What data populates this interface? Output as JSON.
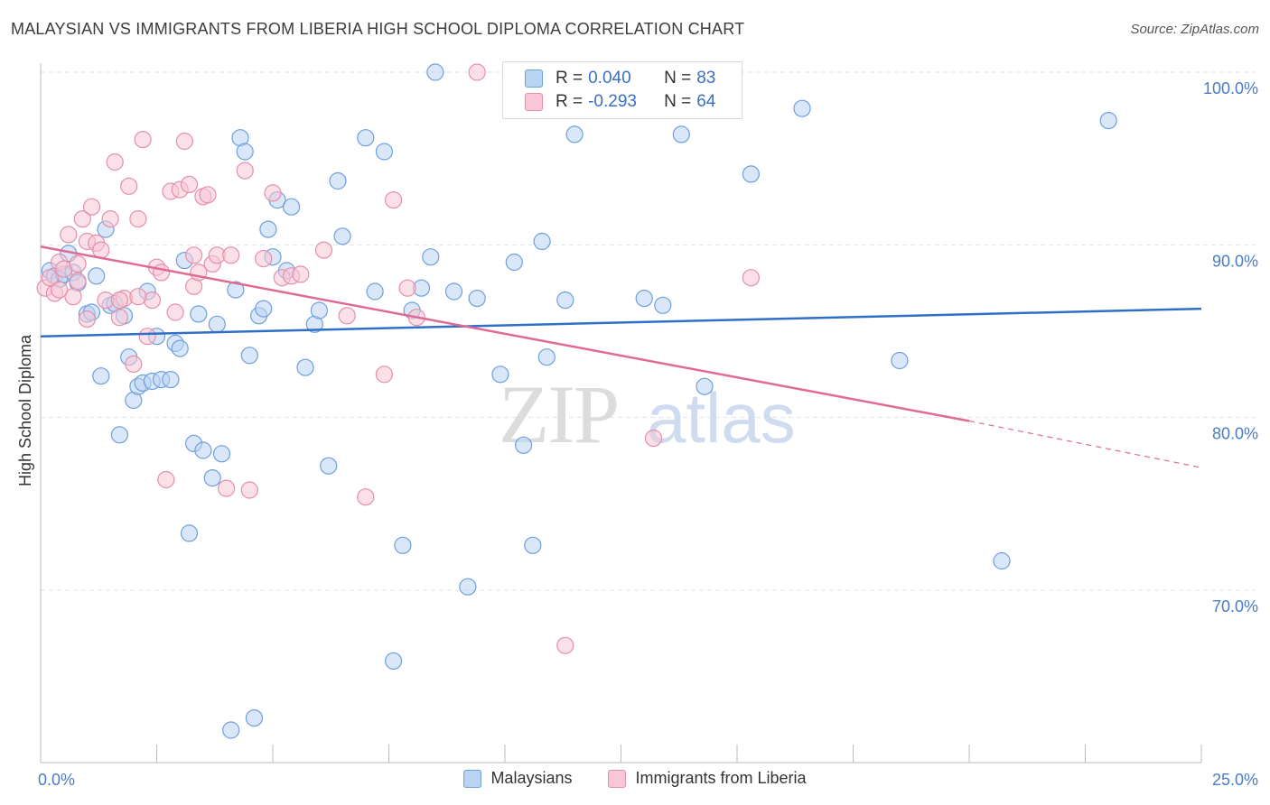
{
  "title": "MALAYSIAN VS IMMIGRANTS FROM LIBERIA HIGH SCHOOL DIPLOMA CORRELATION CHART",
  "source": "Source: ZipAtlas.com",
  "watermark": {
    "zip": "ZIP",
    "atlas": "atlas"
  },
  "colors": {
    "blue_fill": "#b9d3f3",
    "blue_stroke": "#6f9fdd",
    "blue_line": "#2f6fc8",
    "pink_fill": "#f8c6d6",
    "pink_stroke": "#e58fab",
    "pink_line": "#e06a94",
    "axis_text": "#4a7cc7",
    "grid": "#e2e2e2"
  },
  "legend": {
    "rows": [
      {
        "r_label": "R =",
        "r_value": "0.040",
        "n_label": "N =",
        "n_value": "83"
      },
      {
        "r_label": "R =",
        "r_value": "-0.293",
        "n_label": "N =",
        "n_value": "64"
      }
    ]
  },
  "bottom_legend": [
    "Malaysians",
    "Immigrants from Liberia"
  ],
  "chart_data": {
    "type": "scatter",
    "xlabel": "",
    "ylabel": "High School Diploma",
    "xlim": [
      0,
      25
    ],
    "ylim": [
      60.5,
      102
    ],
    "x_tick_labels": [
      "0.0%",
      "25.0%"
    ],
    "y_ticks": [
      70,
      80,
      90,
      100
    ],
    "y_tick_labels": [
      "70.0%",
      "80.0%",
      "90.0%",
      "100.0%"
    ],
    "series": [
      {
        "name": "Malaysians",
        "trend": {
          "x": [
            0,
            25
          ],
          "y": [
            84.7,
            86.3
          ],
          "dashed_from": null
        },
        "points": [
          [
            0.2,
            88.5
          ],
          [
            0.3,
            88.2
          ],
          [
            0.4,
            88.0
          ],
          [
            0.5,
            88.3
          ],
          [
            0.6,
            89.5
          ],
          [
            0.7,
            88.4
          ],
          [
            0.8,
            87.8
          ],
          [
            1.0,
            86.0
          ],
          [
            1.1,
            86.1
          ],
          [
            1.2,
            88.2
          ],
          [
            1.3,
            82.4
          ],
          [
            1.4,
            90.9
          ],
          [
            1.5,
            86.5
          ],
          [
            1.6,
            86.6
          ],
          [
            1.7,
            79.0
          ],
          [
            1.8,
            85.9
          ],
          [
            1.9,
            83.5
          ],
          [
            2.0,
            81.0
          ],
          [
            2.1,
            81.8
          ],
          [
            2.2,
            82.0
          ],
          [
            2.3,
            87.3
          ],
          [
            2.4,
            82.1
          ],
          [
            2.5,
            84.7
          ],
          [
            2.6,
            82.2
          ],
          [
            2.8,
            82.2
          ],
          [
            2.9,
            84.3
          ],
          [
            3.0,
            84.0
          ],
          [
            3.1,
            89.1
          ],
          [
            3.2,
            73.3
          ],
          [
            3.3,
            78.5
          ],
          [
            3.4,
            86.0
          ],
          [
            3.5,
            78.1
          ],
          [
            3.7,
            76.5
          ],
          [
            3.8,
            85.4
          ],
          [
            3.9,
            77.9
          ],
          [
            4.1,
            61.9
          ],
          [
            4.2,
            87.4
          ],
          [
            4.3,
            96.2
          ],
          [
            4.4,
            95.4
          ],
          [
            4.5,
            83.6
          ],
          [
            4.6,
            62.6
          ],
          [
            4.7,
            85.9
          ],
          [
            4.8,
            86.3
          ],
          [
            4.9,
            90.9
          ],
          [
            5.0,
            89.3
          ],
          [
            5.1,
            92.6
          ],
          [
            5.3,
            88.5
          ],
          [
            5.4,
            92.2
          ],
          [
            5.7,
            82.9
          ],
          [
            5.9,
            85.4
          ],
          [
            6.0,
            86.2
          ],
          [
            6.2,
            77.2
          ],
          [
            6.4,
            93.7
          ],
          [
            6.5,
            90.5
          ],
          [
            7.0,
            96.2
          ],
          [
            7.2,
            87.3
          ],
          [
            7.4,
            95.4
          ],
          [
            7.6,
            65.9
          ],
          [
            7.8,
            72.6
          ],
          [
            8.0,
            86.2
          ],
          [
            8.2,
            87.5
          ],
          [
            8.4,
            89.3
          ],
          [
            8.5,
            100.0
          ],
          [
            8.9,
            87.3
          ],
          [
            9.2,
            70.2
          ],
          [
            9.4,
            86.9
          ],
          [
            9.9,
            82.5
          ],
          [
            10.2,
            89.0
          ],
          [
            10.4,
            78.4
          ],
          [
            10.6,
            72.6
          ],
          [
            10.8,
            90.2
          ],
          [
            10.9,
            83.5
          ],
          [
            11.3,
            86.8
          ],
          [
            11.5,
            96.4
          ],
          [
            13.0,
            86.9
          ],
          [
            13.4,
            86.5
          ],
          [
            13.8,
            96.4
          ],
          [
            14.3,
            81.8
          ],
          [
            15.3,
            94.1
          ],
          [
            16.4,
            97.9
          ],
          [
            18.5,
            83.3
          ],
          [
            20.7,
            71.7
          ],
          [
            23.0,
            97.2
          ]
        ]
      },
      {
        "name": "Immigrants from Liberia",
        "trend": {
          "x": [
            0,
            20,
            25
          ],
          "y": [
            89.9,
            79.8,
            77.1
          ],
          "dashed_from": 20
        },
        "points": [
          [
            0.1,
            87.5
          ],
          [
            0.2,
            88.1
          ],
          [
            0.3,
            87.2
          ],
          [
            0.4,
            89.0
          ],
          [
            0.5,
            88.6
          ],
          [
            0.6,
            90.6
          ],
          [
            0.7,
            87.0
          ],
          [
            0.8,
            88.9
          ],
          [
            0.9,
            91.5
          ],
          [
            1.0,
            90.2
          ],
          [
            1.1,
            92.2
          ],
          [
            1.2,
            90.1
          ],
          [
            1.3,
            89.7
          ],
          [
            1.4,
            86.8
          ],
          [
            1.5,
            91.5
          ],
          [
            1.6,
            94.8
          ],
          [
            1.7,
            85.8
          ],
          [
            1.8,
            86.9
          ],
          [
            1.9,
            93.4
          ],
          [
            2.0,
            83.1
          ],
          [
            2.1,
            91.5
          ],
          [
            2.2,
            96.1
          ],
          [
            2.3,
            84.7
          ],
          [
            2.4,
            86.8
          ],
          [
            2.5,
            88.7
          ],
          [
            2.6,
            88.4
          ],
          [
            2.7,
            76.4
          ],
          [
            2.8,
            93.1
          ],
          [
            2.9,
            86.1
          ],
          [
            3.0,
            93.2
          ],
          [
            3.1,
            96.0
          ],
          [
            3.2,
            93.5
          ],
          [
            3.3,
            87.6
          ],
          [
            3.4,
            88.4
          ],
          [
            3.5,
            92.8
          ],
          [
            3.6,
            92.9
          ],
          [
            3.7,
            88.9
          ],
          [
            3.8,
            89.4
          ],
          [
            4.0,
            75.9
          ],
          [
            4.1,
            89.4
          ],
          [
            4.4,
            94.3
          ],
          [
            4.5,
            75.8
          ],
          [
            4.8,
            89.2
          ],
          [
            5.0,
            93.0
          ],
          [
            5.2,
            88.1
          ],
          [
            5.4,
            88.2
          ],
          [
            5.6,
            88.3
          ],
          [
            6.1,
            89.7
          ],
          [
            6.6,
            85.9
          ],
          [
            7.0,
            75.4
          ],
          [
            7.4,
            82.5
          ],
          [
            7.6,
            92.6
          ],
          [
            7.9,
            87.5
          ],
          [
            8.1,
            85.8
          ],
          [
            9.4,
            100.0
          ],
          [
            11.3,
            66.8
          ],
          [
            13.2,
            78.8
          ],
          [
            15.3,
            88.1
          ],
          [
            0.8,
            87.9
          ],
          [
            1.7,
            86.8
          ],
          [
            2.1,
            87.0
          ],
          [
            3.3,
            89.4
          ],
          [
            0.4,
            87.4
          ],
          [
            1.0,
            85.7
          ]
        ]
      }
    ]
  }
}
